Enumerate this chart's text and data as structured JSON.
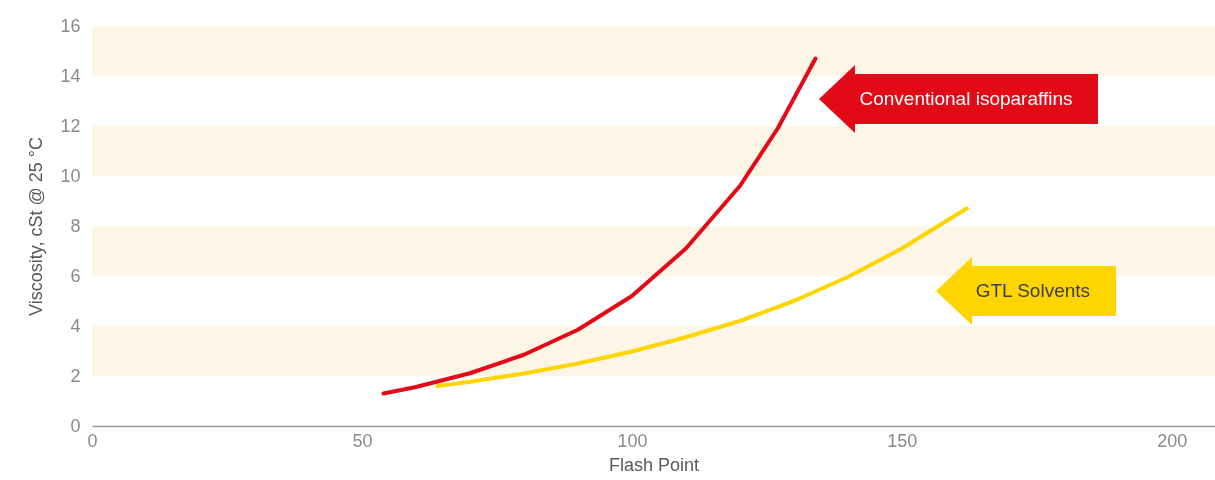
{
  "chart_data": {
    "type": "line",
    "xlabel": "Flash Point",
    "ylabel": "Viscosity, cSt @ 25 °C",
    "xlim": [
      0,
      208
    ],
    "xticks": [
      0,
      50,
      100,
      150,
      200
    ],
    "ylim": [
      0,
      16
    ],
    "yticks": [
      0,
      2,
      4,
      6,
      8,
      10,
      12,
      14,
      16
    ],
    "grid": false,
    "legend": false,
    "marker": "none",
    "line_style": "solid",
    "bands": [
      {
        "axis": "y",
        "from": 2,
        "to": 4,
        "color": "#fdf6e6"
      },
      {
        "axis": "y",
        "from": 6,
        "to": 8,
        "color": "#fdf6e6"
      },
      {
        "axis": "y",
        "from": 10,
        "to": 12,
        "color": "#fdf6e6"
      },
      {
        "axis": "y",
        "from": 14,
        "to": 16,
        "color": "#fdf6e6"
      }
    ],
    "series": [
      {
        "name": "Conventional isoparaffins",
        "color": "#e30a17",
        "x": [
          54,
          60,
          70,
          80,
          90,
          100,
          110,
          120,
          127,
          134
        ],
        "values": [
          1.3,
          1.56,
          2.11,
          2.85,
          3.85,
          5.2,
          7.1,
          9.6,
          11.9,
          14.7
        ]
      },
      {
        "name": "GTL Solvents",
        "color": "#ffd500",
        "x": [
          64,
          70,
          80,
          90,
          100,
          110,
          120,
          130,
          140,
          150,
          162
        ],
        "values": [
          1.6,
          1.77,
          2.1,
          2.5,
          2.98,
          3.55,
          4.2,
          5.0,
          5.96,
          7.1,
          8.7
        ]
      }
    ]
  }
}
